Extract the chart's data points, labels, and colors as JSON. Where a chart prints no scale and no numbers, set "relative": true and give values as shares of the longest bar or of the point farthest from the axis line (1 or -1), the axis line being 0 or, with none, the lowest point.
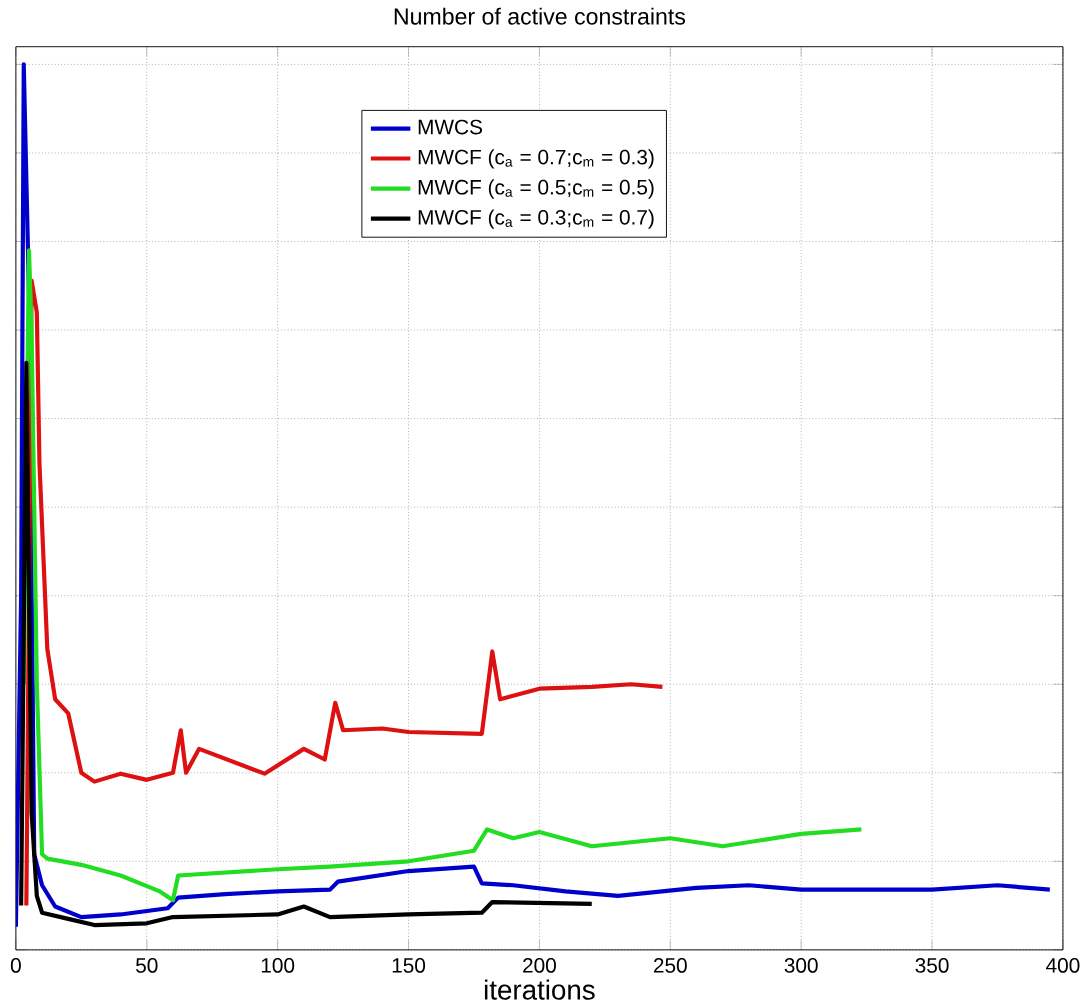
{
  "chart_data": {
    "type": "line",
    "title": "Number of active constraints",
    "xlabel": "iterations",
    "relative": true,
    "xlim": [
      0,
      400
    ],
    "xticks": [
      0,
      50,
      100,
      150,
      200,
      250,
      300,
      350,
      400
    ],
    "tick_labels": "x",
    "grid": true,
    "legend": "top",
    "marker": "none",
    "line_style": "solid",
    "series": [
      {
        "name": "MWCS",
        "color": "#0000cc",
        "x": [
          0,
          2,
          3,
          5,
          7,
          10,
          15,
          25,
          40,
          58,
          62,
          80,
          100,
          120,
          123,
          150,
          175,
          178,
          190,
          210,
          230,
          260,
          280,
          300,
          350,
          375,
          395
        ],
        "values": [
          0.026,
          0.4,
          1.0,
          0.74,
          0.108,
          0.073,
          0.049,
          0.037,
          0.04,
          0.047,
          0.059,
          0.063,
          0.066,
          0.068,
          0.077,
          0.089,
          0.094,
          0.075,
          0.073,
          0.066,
          0.061,
          0.07,
          0.073,
          0.068,
          0.068,
          0.073,
          0.068
        ]
      },
      {
        "name": "MWCF (c$_{a}$ = 0.7;c$_{m}$ = 0.3)",
        "color": "#dd1111",
        "x": [
          4,
          6,
          8,
          9,
          12,
          15,
          20,
          25,
          30,
          40,
          50,
          60,
          63,
          65,
          70,
          95,
          110,
          118,
          122,
          125,
          140,
          150,
          178,
          182,
          185,
          200,
          220,
          235,
          247
        ],
        "values": [
          0.05,
          0.756,
          0.72,
          0.55,
          0.34,
          0.283,
          0.267,
          0.2,
          0.19,
          0.199,
          0.192,
          0.2,
          0.248,
          0.2,
          0.227,
          0.199,
          0.227,
          0.215,
          0.279,
          0.248,
          0.25,
          0.246,
          0.244,
          0.337,
          0.283,
          0.295,
          0.297,
          0.3,
          0.297
        ]
      },
      {
        "name": "MWCF (c$_{a}$ = 0.5;c$_{m}$ = 0.5)",
        "color": "#22dd22",
        "x": [
          3,
          5,
          6,
          8,
          10,
          12,
          25,
          40,
          55,
          60,
          62,
          100,
          120,
          150,
          175,
          180,
          190,
          200,
          220,
          250,
          270,
          300,
          323
        ],
        "values": [
          0.3,
          0.79,
          0.7,
          0.3,
          0.108,
          0.103,
          0.096,
          0.084,
          0.066,
          0.056,
          0.084,
          0.091,
          0.094,
          0.1,
          0.112,
          0.136,
          0.126,
          0.133,
          0.117,
          0.126,
          0.117,
          0.131,
          0.136
        ]
      },
      {
        "name": "MWCF (c$_{a}$ = 0.3;c$_{m}$ = 0.7)",
        "color": "#000000",
        "x": [
          2,
          4,
          6,
          8,
          10,
          20,
          30,
          50,
          60,
          100,
          110,
          120,
          150,
          178,
          182,
          220
        ],
        "values": [
          0.05,
          0.663,
          0.155,
          0.061,
          0.042,
          0.035,
          0.028,
          0.03,
          0.037,
          0.04,
          0.049,
          0.037,
          0.04,
          0.042,
          0.054,
          0.052
        ]
      }
    ]
  }
}
